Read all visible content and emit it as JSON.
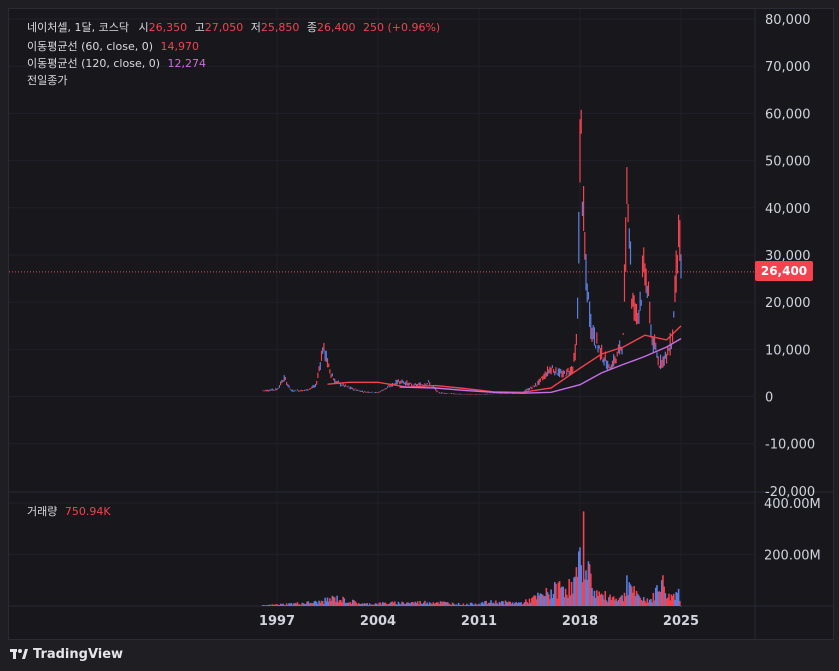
{
  "legend": {
    "symbol": "네이처셀, 1달, 코스닥",
    "o_label": "시",
    "o_value": "26,350",
    "h_label": "고",
    "h_value": "27,050",
    "l_label": "저",
    "l_value": "25,850",
    "c_label": "종",
    "c_value": "26,400",
    "change": "250 (+0.96%)",
    "ma60_label": "이동평균선 (60, close, 0)",
    "ma60_value": "14,970",
    "ma120_label": "이동평균선 (120, close, 0)",
    "ma120_value": "12,274",
    "prev_close_label": "전일종가",
    "volume_label": "거래량",
    "volume_value": "750.94K"
  },
  "price_badge": "26,400",
  "brand": "TradingView",
  "colors": {
    "up": "#f2434f",
    "down": "#5b7fe0",
    "ma60": "#f2434f",
    "ma120": "#c86ee6",
    "background": "#17171c"
  },
  "chart_data": {
    "type": "candlestick",
    "price_axis": {
      "ticks": [
        "80,000",
        "70,000",
        "60,000",
        "50,000",
        "40,000",
        "30,000",
        "20,000",
        "10,000",
        "0",
        "-10,000",
        "-20,000"
      ],
      "min": -20000,
      "max": 80000
    },
    "volume_axis": {
      "ticks": [
        "400.00M",
        "200.00M"
      ],
      "min": 0,
      "max": 400000000
    },
    "x_ticks": [
      "1997",
      "2004",
      "2011",
      "2018",
      "2025"
    ],
    "last_close": 26400,
    "price_series": [
      {
        "t": 1996.0,
        "v": 1200
      },
      {
        "t": 1997.0,
        "v": 1500
      },
      {
        "t": 1997.5,
        "v": 3800
      },
      {
        "t": 1998.0,
        "v": 1200
      },
      {
        "t": 1999.0,
        "v": 1300
      },
      {
        "t": 1999.7,
        "v": 2200
      },
      {
        "t": 2000.2,
        "v": 10500
      },
      {
        "t": 2000.6,
        "v": 6000
      },
      {
        "t": 2001.0,
        "v": 3200
      },
      {
        "t": 2002.0,
        "v": 1800
      },
      {
        "t": 2003.0,
        "v": 1000
      },
      {
        "t": 2004.0,
        "v": 800
      },
      {
        "t": 2005.5,
        "v": 3300
      },
      {
        "t": 2006.5,
        "v": 2200
      },
      {
        "t": 2007.5,
        "v": 2900
      },
      {
        "t": 2008.2,
        "v": 800
      },
      {
        "t": 2009.5,
        "v": 500
      },
      {
        "t": 2011.0,
        "v": 400
      },
      {
        "t": 2012.5,
        "v": 600
      },
      {
        "t": 2014.0,
        "v": 800
      },
      {
        "t": 2015.0,
        "v": 2500
      },
      {
        "t": 2016.0,
        "v": 6000
      },
      {
        "t": 2016.8,
        "v": 4500
      },
      {
        "t": 2017.5,
        "v": 6000
      },
      {
        "t": 2017.8,
        "v": 12000
      },
      {
        "t": 2018.05,
        "v": 60000
      },
      {
        "t": 2018.2,
        "v": 40000
      },
      {
        "t": 2018.4,
        "v": 25000
      },
      {
        "t": 2018.8,
        "v": 14000
      },
      {
        "t": 2019.5,
        "v": 9000
      },
      {
        "t": 2020.0,
        "v": 6000
      },
      {
        "t": 2020.5,
        "v": 8000
      },
      {
        "t": 2021.0,
        "v": 12000
      },
      {
        "t": 2021.3,
        "v": 48000
      },
      {
        "t": 2021.6,
        "v": 20000
      },
      {
        "t": 2022.0,
        "v": 17000
      },
      {
        "t": 2022.5,
        "v": 28000
      },
      {
        "t": 2023.0,
        "v": 12000
      },
      {
        "t": 2023.5,
        "v": 7000
      },
      {
        "t": 2024.0,
        "v": 8500
      },
      {
        "t": 2024.4,
        "v": 12000
      },
      {
        "t": 2024.8,
        "v": 35000
      },
      {
        "t": 2025.0,
        "v": 26400
      }
    ],
    "ma60": [
      {
        "t": 2000.5,
        "v": 2600
      },
      {
        "t": 2002.0,
        "v": 3000
      },
      {
        "t": 2004.0,
        "v": 3000
      },
      {
        "t": 2006.0,
        "v": 2000
      },
      {
        "t": 2008.0,
        "v": 2300
      },
      {
        "t": 2010.0,
        "v": 1700
      },
      {
        "t": 2012.0,
        "v": 1000
      },
      {
        "t": 2014.0,
        "v": 900
      },
      {
        "t": 2016.0,
        "v": 1800
      },
      {
        "t": 2018.0,
        "v": 6000
      },
      {
        "t": 2019.5,
        "v": 9000
      },
      {
        "t": 2021.0,
        "v": 10500
      },
      {
        "t": 2022.5,
        "v": 13000
      },
      {
        "t": 2024.0,
        "v": 12000
      },
      {
        "t": 2025.0,
        "v": 14970
      }
    ],
    "ma120": [
      {
        "t": 2005.5,
        "v": 2000
      },
      {
        "t": 2008.0,
        "v": 1800
      },
      {
        "t": 2010.0,
        "v": 1300
      },
      {
        "t": 2012.0,
        "v": 900
      },
      {
        "t": 2014.0,
        "v": 700
      },
      {
        "t": 2016.0,
        "v": 900
      },
      {
        "t": 2018.0,
        "v": 2500
      },
      {
        "t": 2019.5,
        "v": 5000
      },
      {
        "t": 2021.0,
        "v": 6800
      },
      {
        "t": 2022.5,
        "v": 8500
      },
      {
        "t": 2024.0,
        "v": 10500
      },
      {
        "t": 2025.0,
        "v": 12274
      }
    ],
    "volume_series": [
      {
        "t": 1996.0,
        "v": 3000000
      },
      {
        "t": 2000.0,
        "v": 20000000
      },
      {
        "t": 2001.0,
        "v": 40000000
      },
      {
        "t": 2003.0,
        "v": 10000000
      },
      {
        "t": 2005.0,
        "v": 15000000
      },
      {
        "t": 2008.0,
        "v": 20000000
      },
      {
        "t": 2010.0,
        "v": 8000000
      },
      {
        "t": 2012.0,
        "v": 20000000
      },
      {
        "t": 2014.0,
        "v": 15000000
      },
      {
        "t": 2016.0,
        "v": 70000000
      },
      {
        "t": 2016.8,
        "v": 100000000
      },
      {
        "t": 2017.5,
        "v": 90000000
      },
      {
        "t": 2018.0,
        "v": 200000000
      },
      {
        "t": 2018.3,
        "v": 350000000
      },
      {
        "t": 2018.8,
        "v": 90000000
      },
      {
        "t": 2019.5,
        "v": 50000000
      },
      {
        "t": 2021.0,
        "v": 40000000
      },
      {
        "t": 2021.3,
        "v": 140000000
      },
      {
        "t": 2022.0,
        "v": 40000000
      },
      {
        "t": 2023.0,
        "v": 30000000
      },
      {
        "t": 2023.6,
        "v": 130000000
      },
      {
        "t": 2024.2,
        "v": 40000000
      },
      {
        "t": 2024.8,
        "v": 80000000
      },
      {
        "t": 2025.0,
        "v": 750940
      }
    ]
  }
}
